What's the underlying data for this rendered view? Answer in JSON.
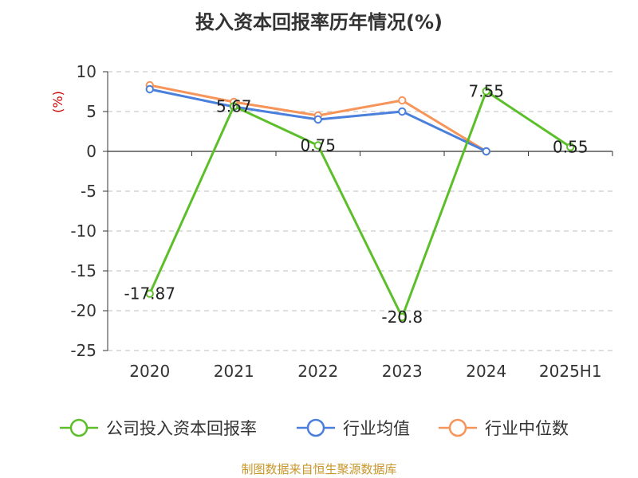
{
  "chart_data": {
    "type": "line",
    "title": "投入资本回报率历年情况(%)",
    "ylabel": "(%)",
    "categories": [
      "2020",
      "2021",
      "2022",
      "2023",
      "2024",
      "2025H1"
    ],
    "ylim": [
      -25,
      10
    ],
    "yticks": [
      10,
      5,
      0,
      -5,
      -10,
      -15,
      -20,
      -25
    ],
    "grid": true,
    "legend_position": "bottom",
    "series": [
      {
        "name": "公司投入资本回报率",
        "color": "#5cbf2a",
        "values": [
          -17.87,
          5.67,
          0.75,
          -20.8,
          7.55,
          0.55
        ],
        "labels": [
          "-17.87",
          "5.67",
          "0.75",
          "-20.8",
          "7.55",
          "0.55"
        ]
      },
      {
        "name": "行业均值",
        "color": "#4a7fdb",
        "values": [
          7.8,
          5.6,
          4.0,
          5.0,
          0.0,
          null
        ]
      },
      {
        "name": "行业中位数",
        "color": "#f7945a",
        "values": [
          8.3,
          6.2,
          4.5,
          6.4,
          0.0,
          null
        ]
      }
    ]
  },
  "source": "制图数据来自恒生聚源数据库"
}
